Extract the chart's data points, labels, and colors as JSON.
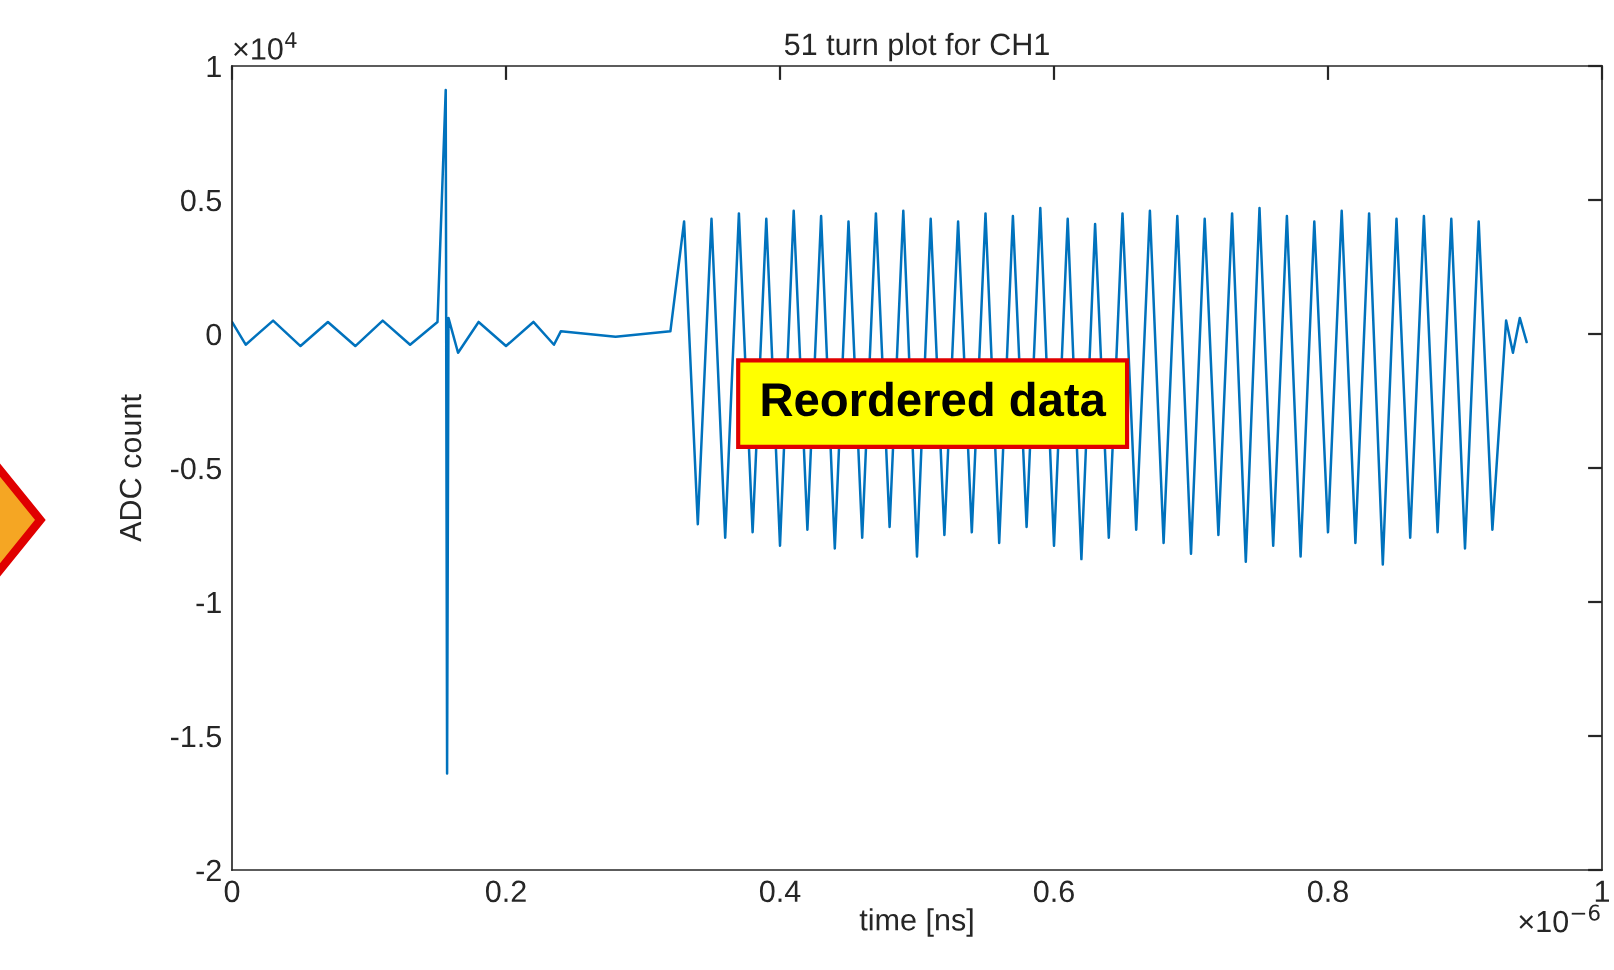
{
  "chart_data": {
    "type": "line",
    "title": "51 turn plot for CH1",
    "xlabel": "time [ns]",
    "ylabel": "ADC count",
    "annotations": [
      "×10$^{4}$",
      "×10$^{−6}$",
      "Reordered data"
    ],
    "x": [
      0,
      0.01,
      0.03,
      0.05,
      0.07,
      0.09,
      0.11,
      0.13,
      0.15,
      0.156,
      0.157,
      0.158,
      0.165,
      0.18,
      0.2,
      0.22,
      0.235,
      0.24,
      0.28,
      0.32,
      0.33,
      0.34,
      0.35,
      0.36,
      0.37,
      0.38,
      0.39,
      0.4,
      0.41,
      0.42,
      0.43,
      0.44,
      0.45,
      0.46,
      0.47,
      0.48,
      0.49,
      0.5,
      0.51,
      0.52,
      0.53,
      0.54,
      0.55,
      0.56,
      0.57,
      0.58,
      0.59,
      0.6,
      0.61,
      0.62,
      0.63,
      0.64,
      0.65,
      0.66,
      0.67,
      0.68,
      0.69,
      0.7,
      0.71,
      0.72,
      0.73,
      0.74,
      0.75,
      0.76,
      0.77,
      0.78,
      0.79,
      0.8,
      0.81,
      0.82,
      0.83,
      0.84,
      0.85,
      0.86,
      0.87,
      0.88,
      0.89,
      0.9,
      0.91,
      0.92,
      0.93,
      0.935,
      0.94,
      0.945
    ],
    "series": [
      {
        "color": "#0072bd",
        "values": [
          0.045,
          -0.04,
          0.05,
          -0.045,
          0.045,
          -0.045,
          0.05,
          -0.04,
          0.045,
          0.91,
          -1.64,
          0.06,
          -0.07,
          0.045,
          -0.045,
          0.045,
          -0.04,
          0.01,
          -0.01,
          0.01,
          0.42,
          -0.71,
          0.43,
          -0.76,
          0.45,
          -0.74,
          0.43,
          -0.79,
          0.46,
          -0.73,
          0.44,
          -0.8,
          0.42,
          -0.76,
          0.45,
          -0.72,
          0.46,
          -0.83,
          0.43,
          -0.75,
          0.42,
          -0.74,
          0.45,
          -0.78,
          0.44,
          -0.72,
          0.47,
          -0.79,
          0.43,
          -0.84,
          0.41,
          -0.76,
          0.45,
          -0.73,
          0.46,
          -0.78,
          0.44,
          -0.82,
          0.43,
          -0.75,
          0.45,
          -0.85,
          0.47,
          -0.79,
          0.44,
          -0.83,
          0.42,
          -0.74,
          0.46,
          -0.78,
          0.45,
          -0.86,
          0.43,
          -0.76,
          0.44,
          -0.74,
          0.43,
          -0.8,
          0.42,
          -0.73,
          0.05,
          -0.07,
          0.06,
          -0.03
        ]
      }
    ],
    "xlim": [
      0,
      1
    ],
    "xticks": [
      0,
      0.2,
      0.4,
      0.6,
      0.8,
      1
    ],
    "ylim": [
      -2,
      1
    ],
    "yticks": [
      -2,
      -1.5,
      -1,
      -0.5,
      0,
      0.5,
      1
    ],
    "grid": false,
    "legend": false,
    "marker": "none",
    "line_style": "solid"
  }
}
